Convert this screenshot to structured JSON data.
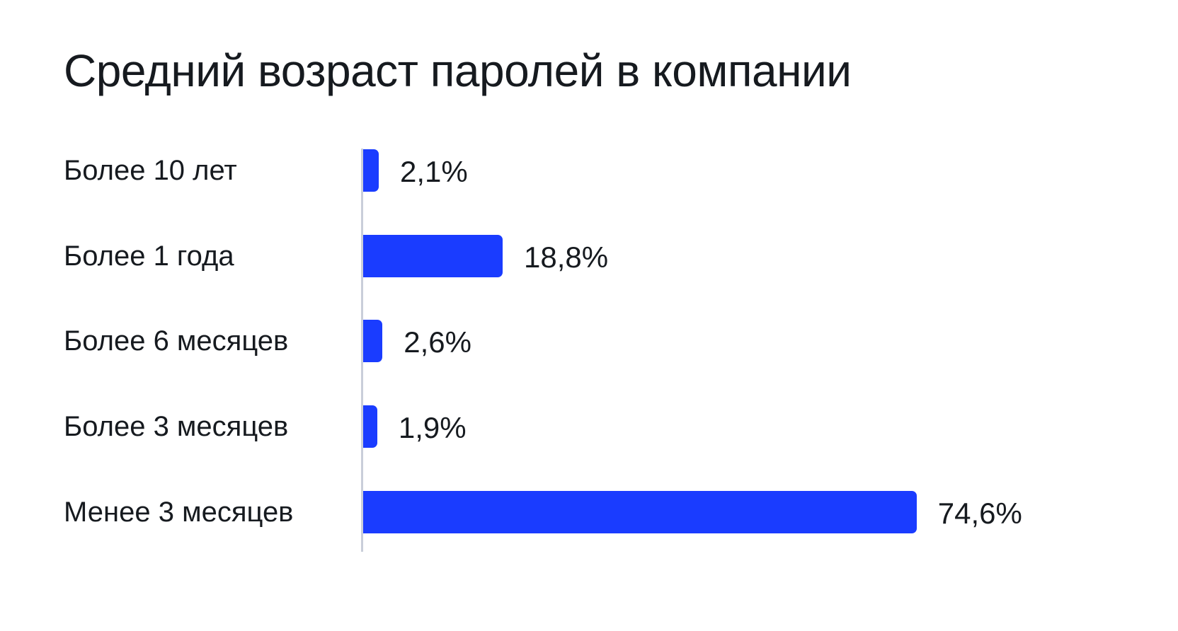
{
  "chart_data": {
    "type": "bar",
    "orientation": "horizontal",
    "title": "Средний возраст паролей в компании",
    "categories": [
      "Более 10 лет",
      "Более 1 года",
      "Более 6 месяцев",
      "Более 3 месяцев",
      "Менее 3 месяцев"
    ],
    "values": [
      2.1,
      18.8,
      2.6,
      1.9,
      74.6
    ],
    "value_labels": [
      "2,1%",
      "18,8%",
      "2,6%",
      "1,9%",
      "74,6%"
    ],
    "xlabel": "",
    "ylabel": "",
    "xlim": [
      0,
      100
    ],
    "grid": false,
    "legend": null,
    "bar_color": "#1a3cff"
  }
}
